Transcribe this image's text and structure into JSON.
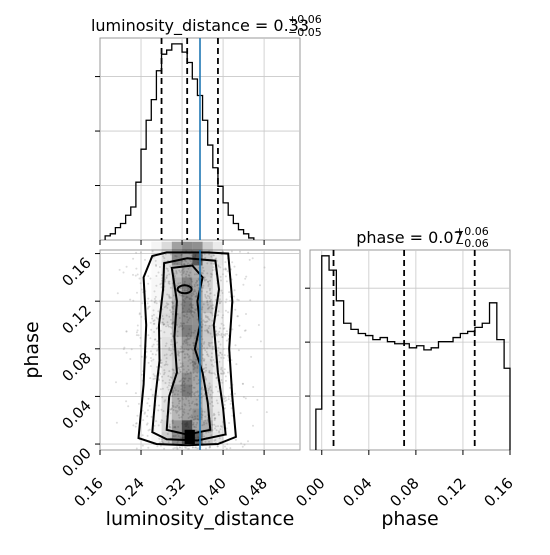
{
  "chart_data": {
    "type": "corner",
    "parameters": [
      "luminosity_distance",
      "phase"
    ],
    "truth": {
      "luminosity_distance": 0.355
    },
    "marginals": [
      {
        "parameter": "luminosity_distance",
        "title": "luminosity_distance = 0.33",
        "title_sup": "+0.06",
        "title_sub": "−0.05",
        "quantiles": [
          0.28,
          0.33,
          0.39
        ],
        "xlim": [
          0.16,
          0.55
        ],
        "ticks": [
          "0.16",
          "0.24",
          "0.32",
          "0.40",
          "0.48"
        ],
        "tick_values": [
          0.16,
          0.24,
          0.32,
          0.4,
          0.48
        ],
        "hist_edges": [
          0.17,
          0.18,
          0.19,
          0.2,
          0.21,
          0.22,
          0.23,
          0.24,
          0.25,
          0.26,
          0.27,
          0.28,
          0.29,
          0.3,
          0.31,
          0.32,
          0.33,
          0.34,
          0.35,
          0.36,
          0.37,
          0.38,
          0.39,
          0.4,
          0.41,
          0.42,
          0.43,
          0.44,
          0.45,
          0.46
        ],
        "hist_counts": [
          2,
          3,
          6,
          8,
          12,
          16,
          28,
          44,
          58,
          68,
          82,
          90,
          92,
          95,
          95,
          91,
          86,
          78,
          70,
          58,
          46,
          35,
          26,
          18,
          12,
          8,
          5,
          3,
          1
        ]
      },
      {
        "parameter": "phase",
        "title": "phase = 0.07",
        "title_sup": "+0.06",
        "title_sub": "−0.06",
        "quantiles": [
          0.01,
          0.07,
          0.13
        ],
        "xlim": [
          -0.01,
          0.16
        ],
        "ticks": [
          "0.00",
          "0.04",
          "0.08",
          "0.12",
          "0.16"
        ],
        "tick_values": [
          0.0,
          0.04,
          0.08,
          0.12,
          0.16
        ],
        "hist_edges": [
          -0.005,
          0.0,
          0.0062,
          0.0124,
          0.0186,
          0.0248,
          0.031,
          0.0372,
          0.0434,
          0.0496,
          0.0558,
          0.062,
          0.0682,
          0.0744,
          0.0806,
          0.0868,
          0.093,
          0.0992,
          0.1054,
          0.1116,
          0.1178,
          0.124,
          0.1302,
          0.1364,
          0.1426,
          0.1488,
          0.155,
          0.16
        ],
        "hist_counts": [
          20,
          95,
          88,
          73,
          62,
          59,
          57,
          56,
          54,
          55,
          53,
          52,
          52,
          50,
          51,
          49,
          50,
          53,
          53,
          55,
          57,
          58,
          60,
          62,
          72,
          54,
          40
        ]
      }
    ],
    "joint": {
      "x_parameter": "luminosity_distance",
      "y_parameter": "phase",
      "xlabel": "luminosity_distance",
      "ylabel": "phase",
      "xlim": [
        0.16,
        0.55
      ],
      "ylim": [
        -0.005,
        0.163
      ],
      "xticks": [
        "0.16",
        "0.24",
        "0.32",
        "0.40",
        "0.48"
      ],
      "xtick_values": [
        0.16,
        0.24,
        0.32,
        0.4,
        0.48
      ],
      "yticks": [
        "0.00",
        "0.04",
        "0.08",
        "0.12",
        "0.16"
      ],
      "ytick_values": [
        0.0,
        0.04,
        0.08,
        0.12,
        0.16
      ],
      "contour_levels": 3
    },
    "colors": {
      "hist": "#000000",
      "quantile": "#000000",
      "truth": "#1f77b4",
      "scatter": "#9a9a9a"
    },
    "grid": true
  }
}
